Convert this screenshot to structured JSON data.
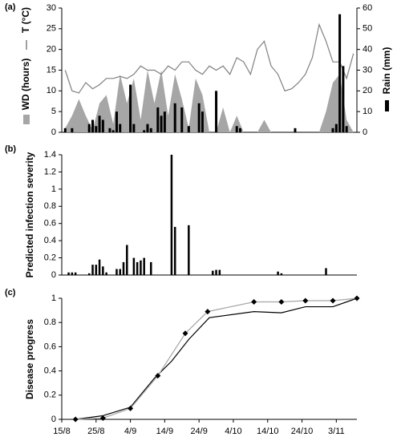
{
  "chart_data": [
    {
      "type": "combo",
      "panel": "(a)",
      "xlim": [
        0,
        86
      ],
      "ylim": [
        0,
        30
      ],
      "yticks": [
        0,
        5,
        10,
        15,
        20,
        25,
        30
      ],
      "y2lim": [
        0,
        60
      ],
      "y2ticks": [
        0,
        10,
        20,
        30,
        40,
        50,
        60
      ],
      "series": [
        {
          "name": "WD (hours)",
          "type": "area",
          "color": "#a6a6a6",
          "x": [
            1,
            3,
            5,
            7,
            9,
            11,
            13,
            15,
            17,
            19,
            21,
            23,
            25,
            27,
            29,
            31,
            33,
            35,
            37,
            39,
            41,
            43,
            45,
            47,
            49,
            51,
            53,
            55,
            57,
            59,
            61,
            63,
            65,
            67,
            69,
            71,
            73,
            75,
            77,
            79,
            81,
            83,
            85
          ],
          "values": [
            1,
            4,
            8,
            4,
            0.5,
            7,
            9,
            2,
            14,
            7,
            13,
            3,
            15,
            7,
            15,
            4,
            14,
            8,
            1,
            13,
            9,
            0,
            0,
            6,
            0,
            4,
            0,
            0,
            0,
            3,
            0,
            0,
            0,
            0,
            0,
            0,
            0,
            0,
            5,
            12,
            14,
            3,
            0
          ]
        },
        {
          "name": "T (°C)",
          "type": "line",
          "color": "#808080",
          "x": [
            1,
            3,
            5,
            7,
            9,
            11,
            13,
            15,
            17,
            19,
            21,
            23,
            25,
            27,
            29,
            31,
            33,
            35,
            37,
            39,
            41,
            43,
            45,
            47,
            49,
            51,
            53,
            55,
            57,
            59,
            61,
            63,
            65,
            67,
            69,
            71,
            73,
            75,
            77,
            79,
            81,
            83,
            85
          ],
          "values": [
            15,
            10,
            9.5,
            12,
            10.5,
            11.5,
            13,
            13,
            13.5,
            13,
            14,
            16,
            15,
            15,
            14,
            16,
            15,
            17,
            17,
            15,
            14,
            16,
            15,
            16,
            14,
            18,
            17,
            14,
            20,
            22,
            16,
            14,
            10,
            10.5,
            12,
            14,
            18,
            26,
            22,
            17,
            17,
            13,
            19
          ]
        },
        {
          "name": "Rain (mm)",
          "type": "bar",
          "axis": "y2",
          "color": "#000000",
          "x": [
            1,
            3,
            8,
            9,
            10,
            11,
            12,
            14,
            15,
            16,
            17,
            20,
            21,
            24,
            25,
            26,
            28,
            29,
            30,
            33,
            35,
            37,
            40,
            41,
            45,
            51,
            52,
            68,
            79,
            80,
            81,
            82,
            83
          ],
          "values": [
            2,
            2,
            4,
            6,
            3,
            8,
            6,
            2,
            1,
            10,
            4,
            23,
            4,
            1,
            4,
            2,
            12,
            8,
            10,
            14,
            12,
            3,
            14,
            10,
            20,
            3,
            2,
            2,
            2,
            4,
            57,
            32,
            3
          ]
        }
      ]
    },
    {
      "type": "bar",
      "panel": "(b)",
      "ylabel": "Predicted infection severity",
      "xlim": [
        0,
        86
      ],
      "ylim": [
        0,
        1.4
      ],
      "yticks": [
        0,
        0.2,
        0.4,
        0.6,
        0.8,
        1,
        1.2,
        1.4
      ],
      "color": "#000000",
      "x": [
        2,
        3,
        4,
        8,
        9,
        10,
        11,
        12,
        13,
        16,
        17,
        18,
        19,
        21,
        22,
        23,
        24,
        26,
        32,
        33,
        37,
        44,
        45,
        46,
        63,
        64,
        77
      ],
      "values": [
        0.03,
        0.03,
        0.03,
        0.02,
        0.12,
        0.12,
        0.18,
        0.1,
        0.03,
        0.07,
        0.07,
        0.15,
        0.35,
        0.2,
        0.15,
        0.17,
        0.2,
        0.15,
        1.4,
        0.56,
        0.58,
        0.05,
        0.06,
        0.06,
        0.04,
        0.02,
        0.08
      ]
    },
    {
      "type": "line",
      "panel": "(c)",
      "ylabel": "Disease progress",
      "xlim": [
        0,
        86
      ],
      "ylim": [
        0,
        1
      ],
      "yticks": [
        0,
        0.2,
        0.4,
        0.6,
        0.8,
        1
      ],
      "xticks": [
        {
          "value": 0,
          "label": "15/8"
        },
        {
          "value": 10,
          "label": "25/8"
        },
        {
          "value": 20,
          "label": "4/9"
        },
        {
          "value": 30,
          "label": "14/9"
        },
        {
          "value": 40,
          "label": "24/9"
        },
        {
          "value": 50,
          "label": "4/10"
        },
        {
          "value": 60,
          "label": "14/10"
        },
        {
          "value": 70,
          "label": "24/10"
        },
        {
          "value": 80,
          "label": "3/11"
        }
      ],
      "series": [
        {
          "color": "#000000",
          "marker": false,
          "x": [
            4,
            12,
            20,
            27,
            32,
            37,
            43,
            56,
            64,
            71,
            79,
            86
          ],
          "values": [
            0,
            0.03,
            0.1,
            0.34,
            0.48,
            0.66,
            0.84,
            0.89,
            0.88,
            0.93,
            0.93,
            1
          ]
        },
        {
          "color": "#a6a6a6",
          "marker": true,
          "marker_color": "#000000",
          "x": [
            4,
            12,
            20,
            28,
            36,
            42.5,
            56,
            64,
            71,
            79,
            86
          ],
          "values": [
            0,
            0.01,
            0.09,
            0.36,
            0.71,
            0.89,
            0.97,
            0.97,
            0.98,
            0.98,
            1
          ]
        }
      ]
    }
  ]
}
